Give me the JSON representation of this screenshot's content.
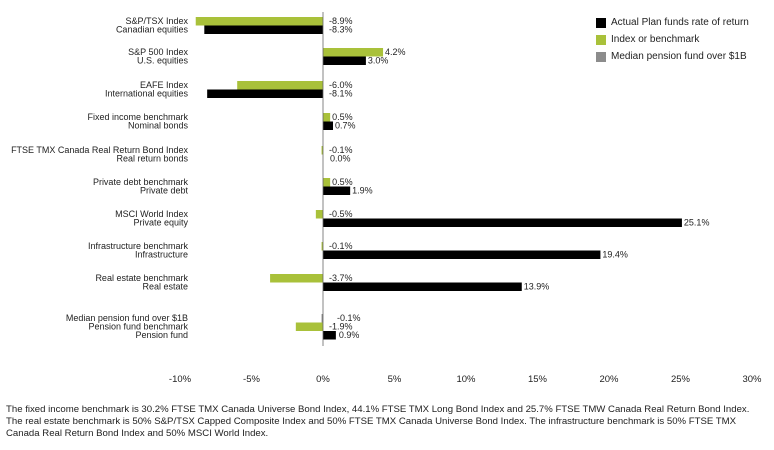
{
  "chart_data": {
    "type": "bar",
    "orientation": "horizontal",
    "xlim": [
      -10,
      30
    ],
    "x_ticks": [
      -10,
      -5,
      0,
      5,
      10,
      15,
      20,
      25,
      30
    ],
    "x_tick_labels": [
      "-10%",
      "-5%",
      "0%",
      "5%",
      "10%",
      "15%",
      "20%",
      "25%",
      "30%"
    ],
    "grid": false,
    "legend_position": "top-right",
    "legend": [
      {
        "name": "Actual Plan funds rate of return",
        "color": "#000000"
      },
      {
        "name": "Index or benchmark",
        "color": "#a9c13a"
      },
      {
        "name": "Median pension fund over $1B",
        "color": "#8c8c8c"
      }
    ],
    "groups": [
      {
        "bars": [
          {
            "label": "S&P/TSX Index",
            "value": -8.9,
            "value_label": "-8.9%",
            "series": "benchmark"
          },
          {
            "label": "Canadian equities",
            "value": -8.3,
            "value_label": "-8.3%",
            "series": "actual"
          }
        ]
      },
      {
        "bars": [
          {
            "label": "S&P 500 Index",
            "value": 4.2,
            "value_label": "4.2%",
            "series": "benchmark"
          },
          {
            "label": "U.S. equities",
            "value": 3.0,
            "value_label": "3.0%",
            "series": "actual"
          }
        ]
      },
      {
        "bars": [
          {
            "label": "EAFE Index",
            "value": -6.0,
            "value_label": "-6.0%",
            "series": "benchmark"
          },
          {
            "label": "International equities",
            "value": -8.1,
            "value_label": "-8.1%",
            "series": "actual"
          }
        ]
      },
      {
        "bars": [
          {
            "label": "Fixed income benchmark",
            "value": 0.5,
            "value_label": "0.5%",
            "series": "benchmark"
          },
          {
            "label": "Nominal bonds",
            "value": 0.7,
            "value_label": "0.7%",
            "series": "actual"
          }
        ]
      },
      {
        "bars": [
          {
            "label": "FTSE TMX Canada Real Return Bond Index",
            "value": -0.1,
            "value_label": "-0.1%",
            "series": "benchmark"
          },
          {
            "label": "Real return bonds",
            "value": 0.0,
            "value_label": "0.0%",
            "series": "actual"
          }
        ]
      },
      {
        "bars": [
          {
            "label": "Private debt benchmark",
            "value": 0.5,
            "value_label": "0.5%",
            "series": "benchmark"
          },
          {
            "label": "Private debt",
            "value": 1.9,
            "value_label": "1.9%",
            "series": "actual"
          }
        ]
      },
      {
        "bars": [
          {
            "label": "MSCI World Index",
            "value": -0.5,
            "value_label": "-0.5%",
            "series": "benchmark"
          },
          {
            "label": "Private equity",
            "value": 25.1,
            "value_label": "25.1%",
            "series": "actual"
          }
        ]
      },
      {
        "bars": [
          {
            "label": "Infrastructure benchmark",
            "value": -0.1,
            "value_label": "-0.1%",
            "series": "benchmark"
          },
          {
            "label": "Infrastructure",
            "value": 19.4,
            "value_label": "19.4%",
            "series": "actual"
          }
        ]
      },
      {
        "bars": [
          {
            "label": "Real estate benchmark",
            "value": -3.7,
            "value_label": "-3.7%",
            "series": "benchmark"
          },
          {
            "label": "Real estate",
            "value": 13.9,
            "value_label": "13.9%",
            "series": "actual"
          }
        ]
      },
      {
        "bars": [
          {
            "label": "Median pension fund over $1B",
            "value": -0.1,
            "value_label": "-0.1%",
            "series": "median"
          },
          {
            "label": "Pension fund benchmark",
            "value": -1.9,
            "value_label": "-1.9%",
            "series": "benchmark"
          },
          {
            "label": "Pension fund",
            "value": 0.9,
            "value_label": "0.9%",
            "series": "actual"
          }
        ]
      }
    ]
  },
  "footnote": "The fixed income benchmark is 30.2% FTSE TMX Canada Universe Bond Index, 44.1% FTSE TMX Long Bond Index and 25.7% FTSE TMW Canada Real Return Bond Index. The real estate benchmark is 50% S&P/TSX Capped Composite Index and 50% FTSE TMX Canada Universe Bond Index. The infrastructure benchmark is 50% FTSE TMX Canada Real Return Bond Index and 50% MSCI World Index."
}
